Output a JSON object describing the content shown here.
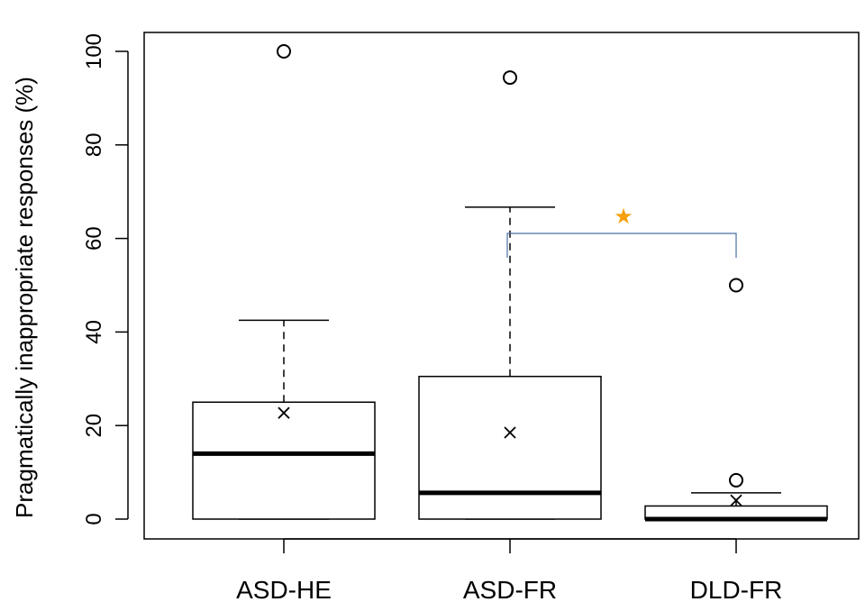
{
  "chart_data": {
    "type": "boxplot",
    "title": "",
    "xlabel": "",
    "ylabel": "Pragmatically inappropriate responses (%)",
    "ylim": [
      -4,
      104
    ],
    "yticks": [
      "0",
      "20",
      "40",
      "60",
      "80",
      "100"
    ],
    "categories": [
      "ASD-HE",
      "ASD-FR",
      "DLD-FR"
    ],
    "boxes": [
      {
        "name": "ASD-HE",
        "lower_whisker": 0,
        "q1": 0,
        "median": 14,
        "q3": 25,
        "upper_whisker": 42.5,
        "mean": 22.7,
        "outliers": [
          100
        ]
      },
      {
        "name": "ASD-FR",
        "lower_whisker": 0,
        "q1": 0,
        "median": 5.6,
        "q3": 30.5,
        "upper_whisker": 66.7,
        "mean": 18.5,
        "outliers": [
          94.4
        ]
      },
      {
        "name": "DLD-FR",
        "lower_whisker": 0,
        "q1": 0,
        "median": 0,
        "q3": 2.8,
        "upper_whisker": 5.6,
        "mean": 4,
        "outliers": [
          8.3,
          50
        ]
      }
    ],
    "significance": {
      "from": "ASD-FR",
      "to": "DLD-FR",
      "symbol": "★",
      "color": "#f5a00a",
      "bracket_color": "#4a6fa5"
    },
    "grid": false
  }
}
